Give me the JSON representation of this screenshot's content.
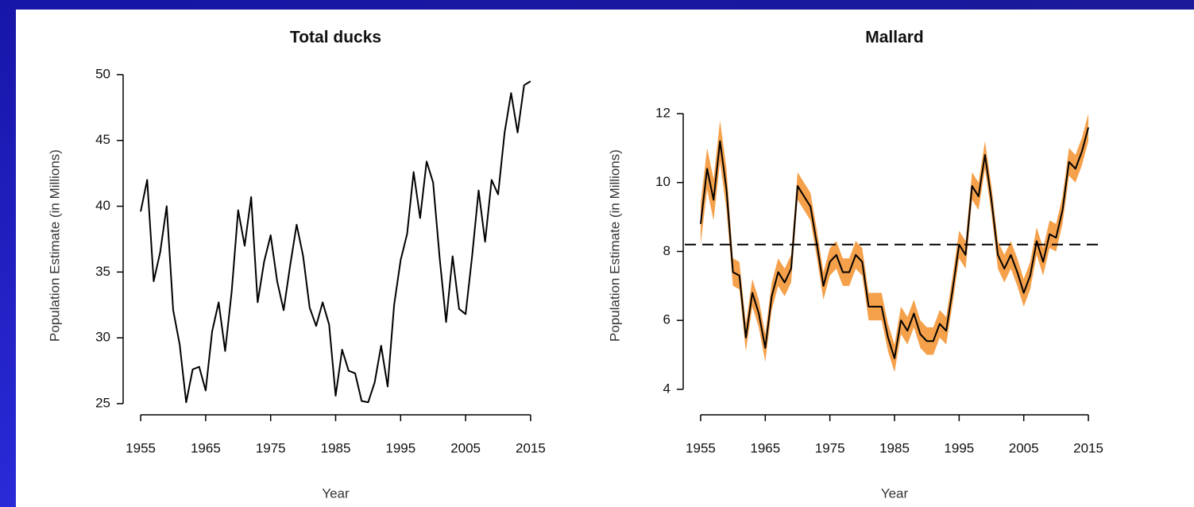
{
  "chart_data": [
    {
      "type": "line",
      "title": "Total ducks",
      "xlabel": "Year",
      "ylabel": "Population Estimate (in Millions)",
      "x": [
        1955,
        1956,
        1957,
        1958,
        1959,
        1960,
        1961,
        1962,
        1963,
        1964,
        1965,
        1966,
        1967,
        1968,
        1969,
        1970,
        1971,
        1972,
        1973,
        1974,
        1975,
        1976,
        1977,
        1978,
        1979,
        1980,
        1981,
        1982,
        1983,
        1984,
        1985,
        1986,
        1987,
        1988,
        1989,
        1990,
        1991,
        1992,
        1993,
        1994,
        1995,
        1996,
        1997,
        1998,
        1999,
        2000,
        2001,
        2002,
        2003,
        2004,
        2005,
        2006,
        2007,
        2008,
        2009,
        2010,
        2011,
        2012,
        2013,
        2014,
        2015
      ],
      "series": [
        {
          "color": "#000000",
          "values": [
            39.6,
            42.0,
            34.3,
            36.5,
            40.0,
            32.1,
            29.5,
            25.1,
            27.6,
            27.8,
            26.0,
            30.5,
            32.7,
            29.0,
            33.5,
            39.7,
            37.0,
            40.7,
            32.7,
            35.8,
            37.8,
            34.3,
            32.1,
            35.5,
            38.6,
            36.2,
            32.3,
            30.9,
            32.7,
            31.0,
            25.6,
            29.1,
            27.5,
            27.3,
            25.2,
            25.1,
            26.6,
            29.4,
            26.3,
            32.5,
            35.9,
            37.9,
            42.6,
            39.1,
            43.4,
            41.8,
            36.1,
            31.2,
            36.2,
            32.2,
            31.8,
            36.2,
            41.2,
            37.3,
            42.0,
            40.9,
            45.6,
            48.6,
            45.6,
            49.2,
            49.5
          ]
        }
      ],
      "xlim": [
        1952.3,
        2017.7
      ],
      "xticks": [
        1955,
        1965,
        1975,
        1985,
        1995,
        2005,
        2015
      ],
      "ylim": [
        24.15,
        50.6
      ],
      "yticks": [
        25,
        30,
        35,
        40,
        45,
        50
      ]
    },
    {
      "type": "line",
      "title": "Mallard",
      "xlabel": "Year",
      "ylabel": "Population Estimate (in Millions)",
      "x": [
        1955,
        1956,
        1957,
        1958,
        1959,
        1960,
        1961,
        1962,
        1963,
        1964,
        1965,
        1966,
        1967,
        1968,
        1969,
        1970,
        1971,
        1972,
        1973,
        1974,
        1975,
        1976,
        1977,
        1978,
        1979,
        1980,
        1981,
        1982,
        1983,
        1984,
        1985,
        1986,
        1987,
        1988,
        1989,
        1990,
        1991,
        1992,
        1993,
        1994,
        1995,
        1996,
        1997,
        1998,
        1999,
        2000,
        2001,
        2002,
        2003,
        2004,
        2005,
        2006,
        2007,
        2008,
        2009,
        2010,
        2011,
        2012,
        2013,
        2014,
        2015
      ],
      "series": [
        {
          "color": "#000000",
          "values": [
            8.8,
            10.4,
            9.5,
            11.2,
            9.8,
            7.4,
            7.3,
            5.5,
            6.8,
            6.2,
            5.2,
            6.7,
            7.4,
            7.1,
            7.5,
            9.9,
            9.6,
            9.3,
            8.2,
            7.0,
            7.7,
            7.9,
            7.4,
            7.4,
            7.9,
            7.7,
            6.4,
            6.4,
            6.4,
            5.5,
            4.9,
            6.0,
            5.7,
            6.2,
            5.6,
            5.4,
            5.4,
            5.9,
            5.7,
            6.9,
            8.2,
            7.9,
            9.9,
            9.6,
            10.8,
            9.5,
            7.9,
            7.5,
            7.9,
            7.4,
            6.8,
            7.3,
            8.3,
            7.7,
            8.5,
            8.4,
            9.2,
            10.6,
            10.4,
            10.9,
            11.6
          ],
          "band": {
            "color": "#f5a04a",
            "lower": [
              8.2,
              9.8,
              8.9,
              10.6,
              9.2,
              7.0,
              6.9,
              5.1,
              6.4,
              5.8,
              4.8,
              6.3,
              7.0,
              6.7,
              7.1,
              9.5,
              9.2,
              8.9,
              7.8,
              6.6,
              7.3,
              7.5,
              7.0,
              7.0,
              7.5,
              7.3,
              6.0,
              6.0,
              6.0,
              5.1,
              4.5,
              5.6,
              5.3,
              5.8,
              5.2,
              5.0,
              5.0,
              5.5,
              5.3,
              6.5,
              7.8,
              7.5,
              9.5,
              9.2,
              10.4,
              9.1,
              7.5,
              7.1,
              7.5,
              7.0,
              6.4,
              6.9,
              7.9,
              7.3,
              8.1,
              8.0,
              8.8,
              10.2,
              10.0,
              10.5,
              11.2
            ],
            "upper": [
              9.4,
              11.0,
              10.1,
              11.8,
              10.4,
              7.8,
              7.7,
              5.9,
              7.2,
              6.6,
              5.6,
              7.1,
              7.8,
              7.5,
              7.9,
              10.3,
              10.0,
              9.7,
              8.6,
              7.4,
              8.1,
              8.3,
              7.8,
              7.8,
              8.3,
              8.1,
              6.8,
              6.8,
              6.8,
              5.9,
              5.3,
              6.4,
              6.1,
              6.6,
              6.0,
              5.8,
              5.8,
              6.3,
              6.1,
              7.3,
              8.6,
              8.3,
              10.3,
              10.0,
              11.2,
              9.9,
              8.3,
              7.9,
              8.3,
              7.8,
              7.2,
              7.7,
              8.7,
              8.1,
              8.9,
              8.8,
              9.6,
              11.0,
              10.8,
              11.3,
              12.0
            ]
          }
        }
      ],
      "hline": {
        "value": 8.2,
        "color": "#000000",
        "style": "dashed"
      },
      "xlim": [
        1952.3,
        2017.7
      ],
      "xticks": [
        1955,
        1965,
        1975,
        1985,
        1995,
        2005,
        2015
      ],
      "ylim": [
        3.26,
        13.36
      ],
      "yticks": [
        4,
        6,
        8,
        10,
        12
      ]
    }
  ]
}
